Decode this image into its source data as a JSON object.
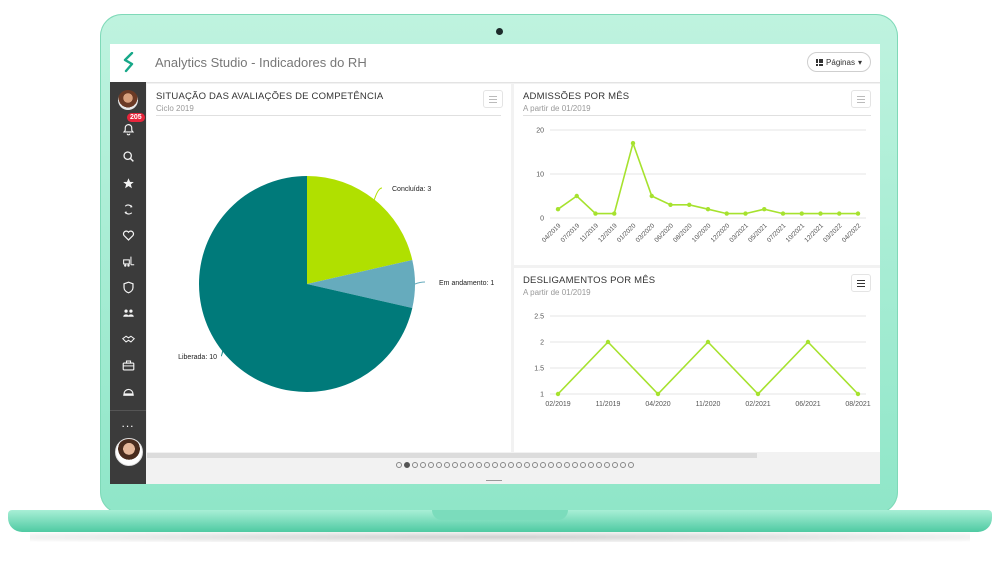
{
  "app": {
    "title": "Analytics Studio - Indicadores do RH",
    "pages_button": "Páginas"
  },
  "sidebar": {
    "notification_count": "205",
    "items": [
      "avatar",
      "bell-icon",
      "search-icon",
      "star-icon",
      "refresh-hand-icon",
      "heart-icon",
      "forklift-icon",
      "shield-icon",
      "people-icon",
      "handshake-icon",
      "briefcase-icon",
      "helmet-icon"
    ],
    "more": "..."
  },
  "panels": {
    "pie": {
      "title": "SITUAÇÃO DAS AVALIAÇÕES DE COMPETÊNCIA",
      "subtitle": "Ciclo 2019",
      "labels": [
        "Concluída: 3",
        "Em andamento: 1",
        "Liberada: 10"
      ]
    },
    "admissoes": {
      "title": "ADMISSÕES POR MÊS",
      "subtitle": "A partir de 01/2019"
    },
    "desligamentos": {
      "title": "DESLIGAMENTOS POR MÊS",
      "subtitle": "A partir de 01/2019"
    }
  },
  "pagination": {
    "total": 30,
    "active": 1
  },
  "colors": {
    "lime": "#a6e22e",
    "teal": "#007a7a",
    "steel": "#6aacbc"
  },
  "chart_data": [
    {
      "type": "pie",
      "title": "SITUAÇÃO DAS AVALIAÇÕES DE COMPETÊNCIA",
      "subtitle": "Ciclo 2019",
      "categories": [
        "Concluída",
        "Em andamento",
        "Liberada"
      ],
      "values": [
        3,
        1,
        10
      ],
      "colors": [
        "#b0e000",
        "#66abbd",
        "#007a7a"
      ]
    },
    {
      "type": "line",
      "title": "ADMISSÕES POR MÊS",
      "subtitle": "A partir de 01/2019",
      "x_tick_labels": [
        "04/2019",
        "07/2019",
        "11/2019",
        "12/2019",
        "01/2020",
        "03/2020",
        "06/2020",
        "08/2020",
        "10/2020",
        "12/2020",
        "03/2021",
        "05/2021",
        "07/2021",
        "10/2021",
        "12/2021",
        "03/2022",
        "04/2022"
      ],
      "y_ticks": [
        0,
        10,
        20
      ],
      "ylim": [
        0,
        20
      ],
      "values": [
        2,
        5,
        1,
        1,
        17,
        5,
        3,
        3,
        2,
        1,
        1,
        2,
        1,
        1,
        1,
        1,
        1
      ],
      "color": "#a6e22e"
    },
    {
      "type": "line",
      "title": "DESLIGAMENTOS POR MÊS",
      "subtitle": "A partir de 01/2019",
      "categories": [
        "02/2019",
        "11/2019",
        "04/2020",
        "11/2020",
        "02/2021",
        "06/2021",
        "08/2021"
      ],
      "values": [
        1,
        2,
        1,
        2,
        1,
        2,
        1
      ],
      "y_ticks": [
        1,
        1.5,
        2,
        2.5
      ],
      "ylim": [
        1,
        2.5
      ],
      "color": "#a6e22e"
    }
  ]
}
